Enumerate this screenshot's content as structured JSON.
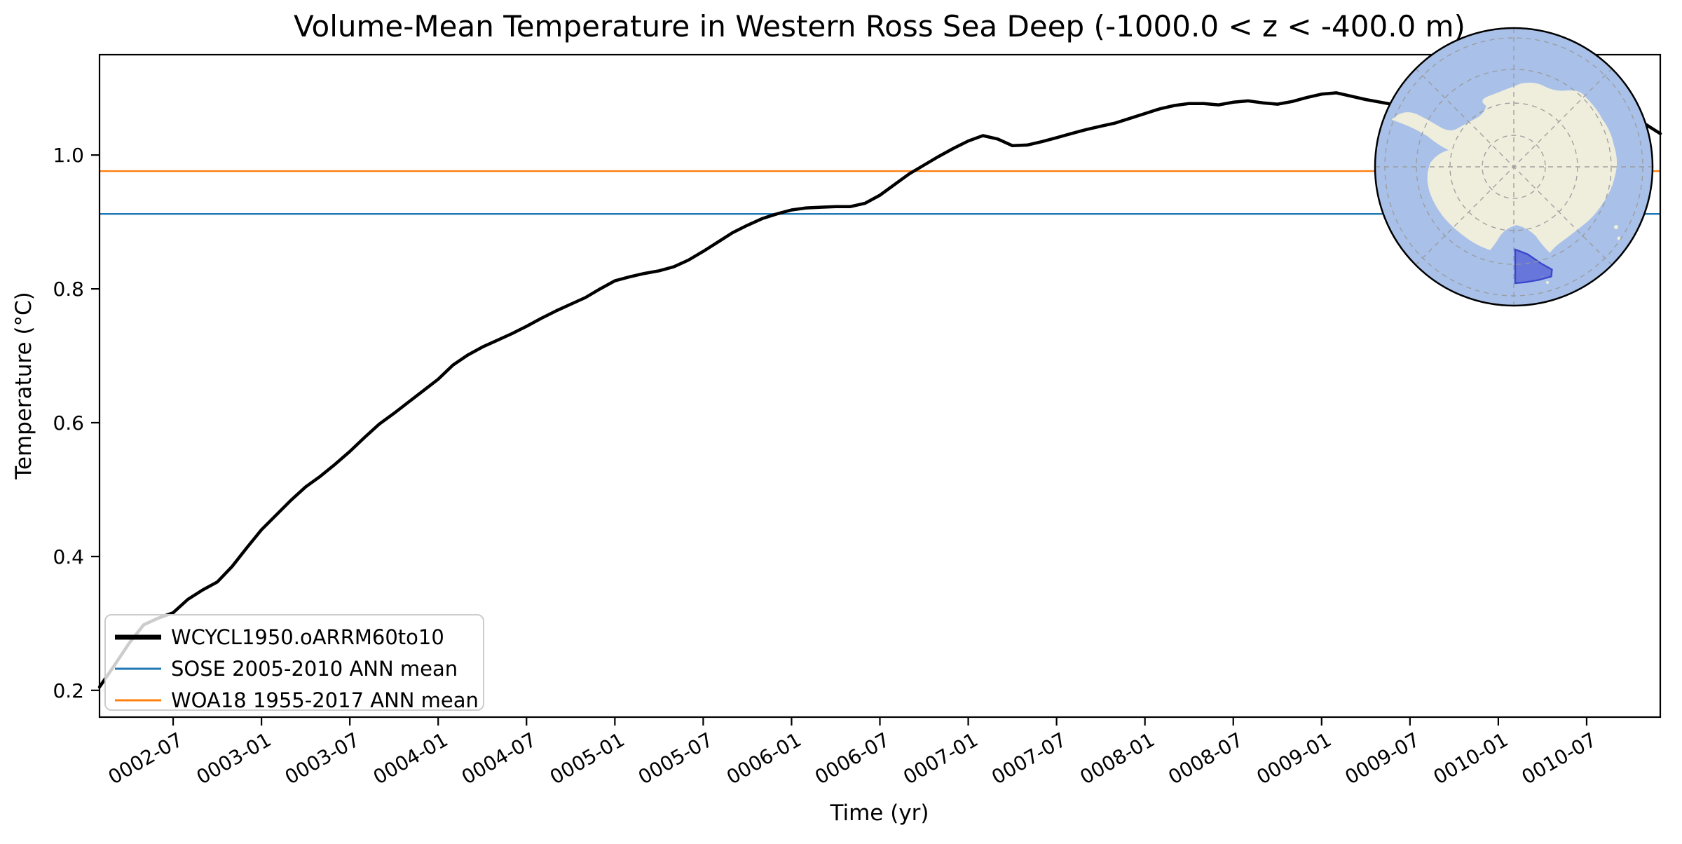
{
  "figure": {
    "title": "Volume-Mean Temperature in Western Ross Sea Deep (-1000.0 < z < -400.0 m)",
    "xlabel": "Time (yr)",
    "ylabel": "Temperature (°C)"
  },
  "chart_data": {
    "type": "line",
    "title": "Volume-Mean Temperature in Western Ross Sea Deep (-1000.0 < z < -400.0 m)",
    "xlabel": "Time (yr)",
    "ylabel": "Temperature (°C)",
    "x_start_month": "0002-02",
    "x_end_month": "0010-12",
    "x_interval": "monthly",
    "x_tick_labels": [
      "0002-07",
      "0003-01",
      "0003-07",
      "0004-01",
      "0004-07",
      "0005-01",
      "0005-07",
      "0006-01",
      "0006-07",
      "0007-01",
      "0007-07",
      "0008-01",
      "0008-07",
      "0009-01",
      "0009-07",
      "0010-01",
      "0010-07"
    ],
    "x_tick_first_index": 5,
    "x_tick_step": 6,
    "x_tick_rotation_deg": -30,
    "y_ticks": [
      0.2,
      0.4,
      0.6,
      0.8,
      1.0
    ],
    "ylim": [
      0.16,
      1.15
    ],
    "grid": false,
    "legend_position": "lower left",
    "series": [
      {
        "name": "WCYCL1950.oARRM60to10",
        "color": "#000000",
        "linewidth": 4.5,
        "values": [
          0.205,
          0.237,
          0.27,
          0.298,
          0.308,
          0.316,
          0.336,
          0.35,
          0.362,
          0.385,
          0.413,
          0.44,
          0.462,
          0.484,
          0.504,
          0.52,
          0.538,
          0.557,
          0.578,
          0.598,
          0.614,
          0.631,
          0.648,
          0.665,
          0.686,
          0.701,
          0.713,
          0.723,
          0.733,
          0.744,
          0.756,
          0.767,
          0.777,
          0.787,
          0.8,
          0.812,
          0.818,
          0.823,
          0.827,
          0.833,
          0.843,
          0.856,
          0.87,
          0.884,
          0.895,
          0.905,
          0.912,
          0.918,
          0.921,
          0.922,
          0.923,
          0.923,
          0.928,
          0.94,
          0.956,
          0.972,
          0.985,
          0.998,
          1.01,
          1.021,
          1.029,
          1.024,
          1.014,
          1.015,
          1.02,
          1.026,
          1.032,
          1.038,
          1.043,
          1.048,
          1.055,
          1.062,
          1.069,
          1.074,
          1.077,
          1.077,
          1.075,
          1.079,
          1.081,
          1.078,
          1.076,
          1.08,
          1.086,
          1.091,
          1.093,
          1.088,
          1.083,
          1.079,
          1.075,
          1.072,
          1.069,
          1.067,
          1.065,
          1.063,
          1.061,
          1.059,
          1.058,
          1.057,
          1.056,
          1.056,
          1.055,
          1.055,
          1.054,
          1.053,
          1.051,
          1.046,
          1.032
        ]
      },
      {
        "name": "SOSE 2005-2010 ANN mean",
        "color": "#1f77b4",
        "linewidth": 2.4,
        "constant": 0.912
      },
      {
        "name": "WOA18 1955-2017 ANN mean",
        "color": "#ff7f0e",
        "linewidth": 2.4,
        "constant": 0.976
      }
    ]
  },
  "inset_map": {
    "description": "south-polar-stereographic-globe",
    "region_name": "Western Ross Sea",
    "ocean_color": "#a9c1e8",
    "land_color": "#efeedd",
    "region_fill": "#5563d6",
    "region_stroke": "#3a47cc",
    "graticule_color": "#999999",
    "border_color": "#000000"
  }
}
